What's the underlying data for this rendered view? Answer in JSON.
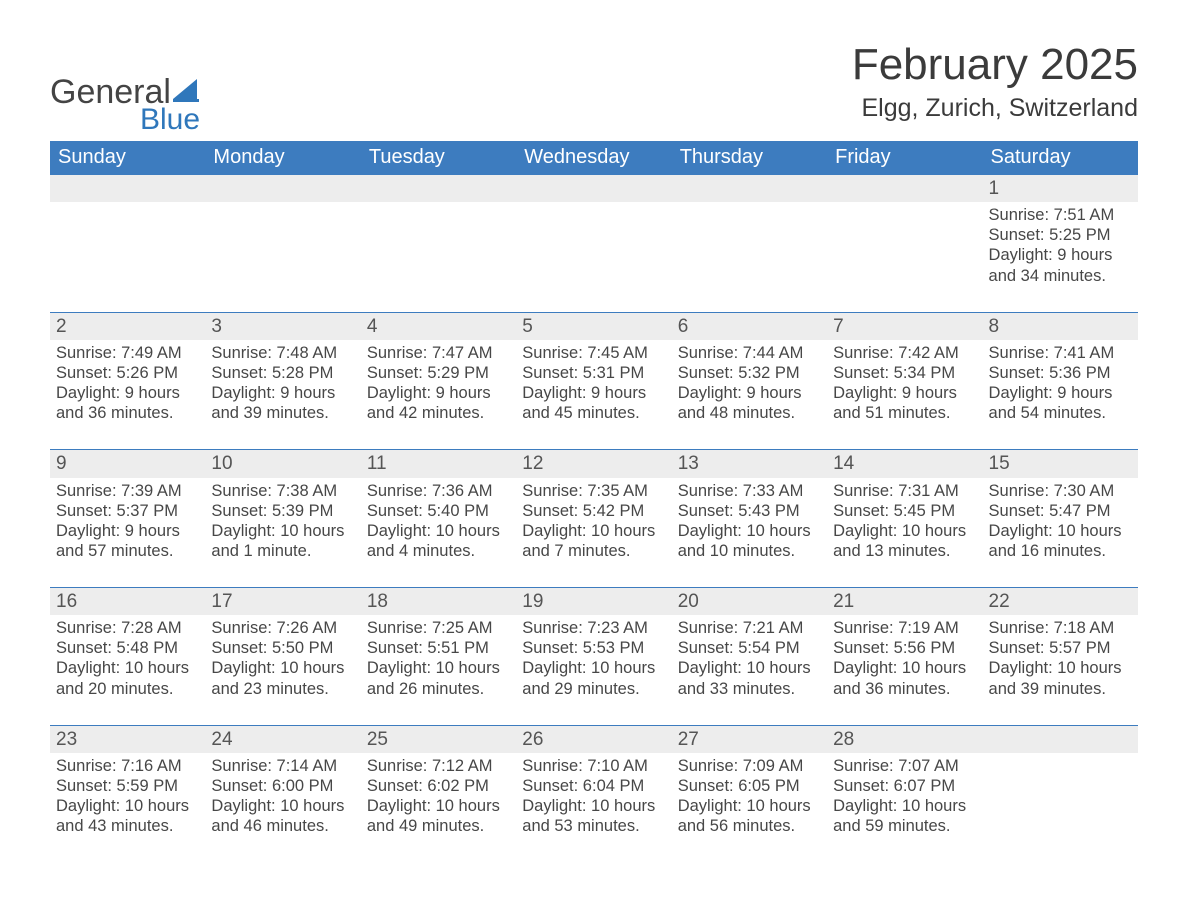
{
  "logo": {
    "word1": "General",
    "word2": "Blue",
    "sail_color": "#2f77bb"
  },
  "title": "February 2025",
  "location": "Elgg, Zurich, Switzerland",
  "colors": {
    "header_bg": "#3d7cbf",
    "header_text": "#ffffff",
    "daynum_bg": "#ededed",
    "week_border": "#3d7cbf",
    "body_text": "#474747"
  },
  "weekdays": [
    "Sunday",
    "Monday",
    "Tuesday",
    "Wednesday",
    "Thursday",
    "Friday",
    "Saturday"
  ],
  "weeks": [
    [
      {
        "n": "",
        "sunrise": "",
        "sunset": "",
        "daylight": ""
      },
      {
        "n": "",
        "sunrise": "",
        "sunset": "",
        "daylight": ""
      },
      {
        "n": "",
        "sunrise": "",
        "sunset": "",
        "daylight": ""
      },
      {
        "n": "",
        "sunrise": "",
        "sunset": "",
        "daylight": ""
      },
      {
        "n": "",
        "sunrise": "",
        "sunset": "",
        "daylight": ""
      },
      {
        "n": "",
        "sunrise": "",
        "sunset": "",
        "daylight": ""
      },
      {
        "n": "1",
        "sunrise": "Sunrise: 7:51 AM",
        "sunset": "Sunset: 5:25 PM",
        "daylight": "Daylight: 9 hours and 34 minutes."
      }
    ],
    [
      {
        "n": "2",
        "sunrise": "Sunrise: 7:49 AM",
        "sunset": "Sunset: 5:26 PM",
        "daylight": "Daylight: 9 hours and 36 minutes."
      },
      {
        "n": "3",
        "sunrise": "Sunrise: 7:48 AM",
        "sunset": "Sunset: 5:28 PM",
        "daylight": "Daylight: 9 hours and 39 minutes."
      },
      {
        "n": "4",
        "sunrise": "Sunrise: 7:47 AM",
        "sunset": "Sunset: 5:29 PM",
        "daylight": "Daylight: 9 hours and 42 minutes."
      },
      {
        "n": "5",
        "sunrise": "Sunrise: 7:45 AM",
        "sunset": "Sunset: 5:31 PM",
        "daylight": "Daylight: 9 hours and 45 minutes."
      },
      {
        "n": "6",
        "sunrise": "Sunrise: 7:44 AM",
        "sunset": "Sunset: 5:32 PM",
        "daylight": "Daylight: 9 hours and 48 minutes."
      },
      {
        "n": "7",
        "sunrise": "Sunrise: 7:42 AM",
        "sunset": "Sunset: 5:34 PM",
        "daylight": "Daylight: 9 hours and 51 minutes."
      },
      {
        "n": "8",
        "sunrise": "Sunrise: 7:41 AM",
        "sunset": "Sunset: 5:36 PM",
        "daylight": "Daylight: 9 hours and 54 minutes."
      }
    ],
    [
      {
        "n": "9",
        "sunrise": "Sunrise: 7:39 AM",
        "sunset": "Sunset: 5:37 PM",
        "daylight": "Daylight: 9 hours and 57 minutes."
      },
      {
        "n": "10",
        "sunrise": "Sunrise: 7:38 AM",
        "sunset": "Sunset: 5:39 PM",
        "daylight": "Daylight: 10 hours and 1 minute."
      },
      {
        "n": "11",
        "sunrise": "Sunrise: 7:36 AM",
        "sunset": "Sunset: 5:40 PM",
        "daylight": "Daylight: 10 hours and 4 minutes."
      },
      {
        "n": "12",
        "sunrise": "Sunrise: 7:35 AM",
        "sunset": "Sunset: 5:42 PM",
        "daylight": "Daylight: 10 hours and 7 minutes."
      },
      {
        "n": "13",
        "sunrise": "Sunrise: 7:33 AM",
        "sunset": "Sunset: 5:43 PM",
        "daylight": "Daylight: 10 hours and 10 minutes."
      },
      {
        "n": "14",
        "sunrise": "Sunrise: 7:31 AM",
        "sunset": "Sunset: 5:45 PM",
        "daylight": "Daylight: 10 hours and 13 minutes."
      },
      {
        "n": "15",
        "sunrise": "Sunrise: 7:30 AM",
        "sunset": "Sunset: 5:47 PM",
        "daylight": "Daylight: 10 hours and 16 minutes."
      }
    ],
    [
      {
        "n": "16",
        "sunrise": "Sunrise: 7:28 AM",
        "sunset": "Sunset: 5:48 PM",
        "daylight": "Daylight: 10 hours and 20 minutes."
      },
      {
        "n": "17",
        "sunrise": "Sunrise: 7:26 AM",
        "sunset": "Sunset: 5:50 PM",
        "daylight": "Daylight: 10 hours and 23 minutes."
      },
      {
        "n": "18",
        "sunrise": "Sunrise: 7:25 AM",
        "sunset": "Sunset: 5:51 PM",
        "daylight": "Daylight: 10 hours and 26 minutes."
      },
      {
        "n": "19",
        "sunrise": "Sunrise: 7:23 AM",
        "sunset": "Sunset: 5:53 PM",
        "daylight": "Daylight: 10 hours and 29 minutes."
      },
      {
        "n": "20",
        "sunrise": "Sunrise: 7:21 AM",
        "sunset": "Sunset: 5:54 PM",
        "daylight": "Daylight: 10 hours and 33 minutes."
      },
      {
        "n": "21",
        "sunrise": "Sunrise: 7:19 AM",
        "sunset": "Sunset: 5:56 PM",
        "daylight": "Daylight: 10 hours and 36 minutes."
      },
      {
        "n": "22",
        "sunrise": "Sunrise: 7:18 AM",
        "sunset": "Sunset: 5:57 PM",
        "daylight": "Daylight: 10 hours and 39 minutes."
      }
    ],
    [
      {
        "n": "23",
        "sunrise": "Sunrise: 7:16 AM",
        "sunset": "Sunset: 5:59 PM",
        "daylight": "Daylight: 10 hours and 43 minutes."
      },
      {
        "n": "24",
        "sunrise": "Sunrise: 7:14 AM",
        "sunset": "Sunset: 6:00 PM",
        "daylight": "Daylight: 10 hours and 46 minutes."
      },
      {
        "n": "25",
        "sunrise": "Sunrise: 7:12 AM",
        "sunset": "Sunset: 6:02 PM",
        "daylight": "Daylight: 10 hours and 49 minutes."
      },
      {
        "n": "26",
        "sunrise": "Sunrise: 7:10 AM",
        "sunset": "Sunset: 6:04 PM",
        "daylight": "Daylight: 10 hours and 53 minutes."
      },
      {
        "n": "27",
        "sunrise": "Sunrise: 7:09 AM",
        "sunset": "Sunset: 6:05 PM",
        "daylight": "Daylight: 10 hours and 56 minutes."
      },
      {
        "n": "28",
        "sunrise": "Sunrise: 7:07 AM",
        "sunset": "Sunset: 6:07 PM",
        "daylight": "Daylight: 10 hours and 59 minutes."
      },
      {
        "n": "",
        "sunrise": "",
        "sunset": "",
        "daylight": ""
      }
    ]
  ]
}
